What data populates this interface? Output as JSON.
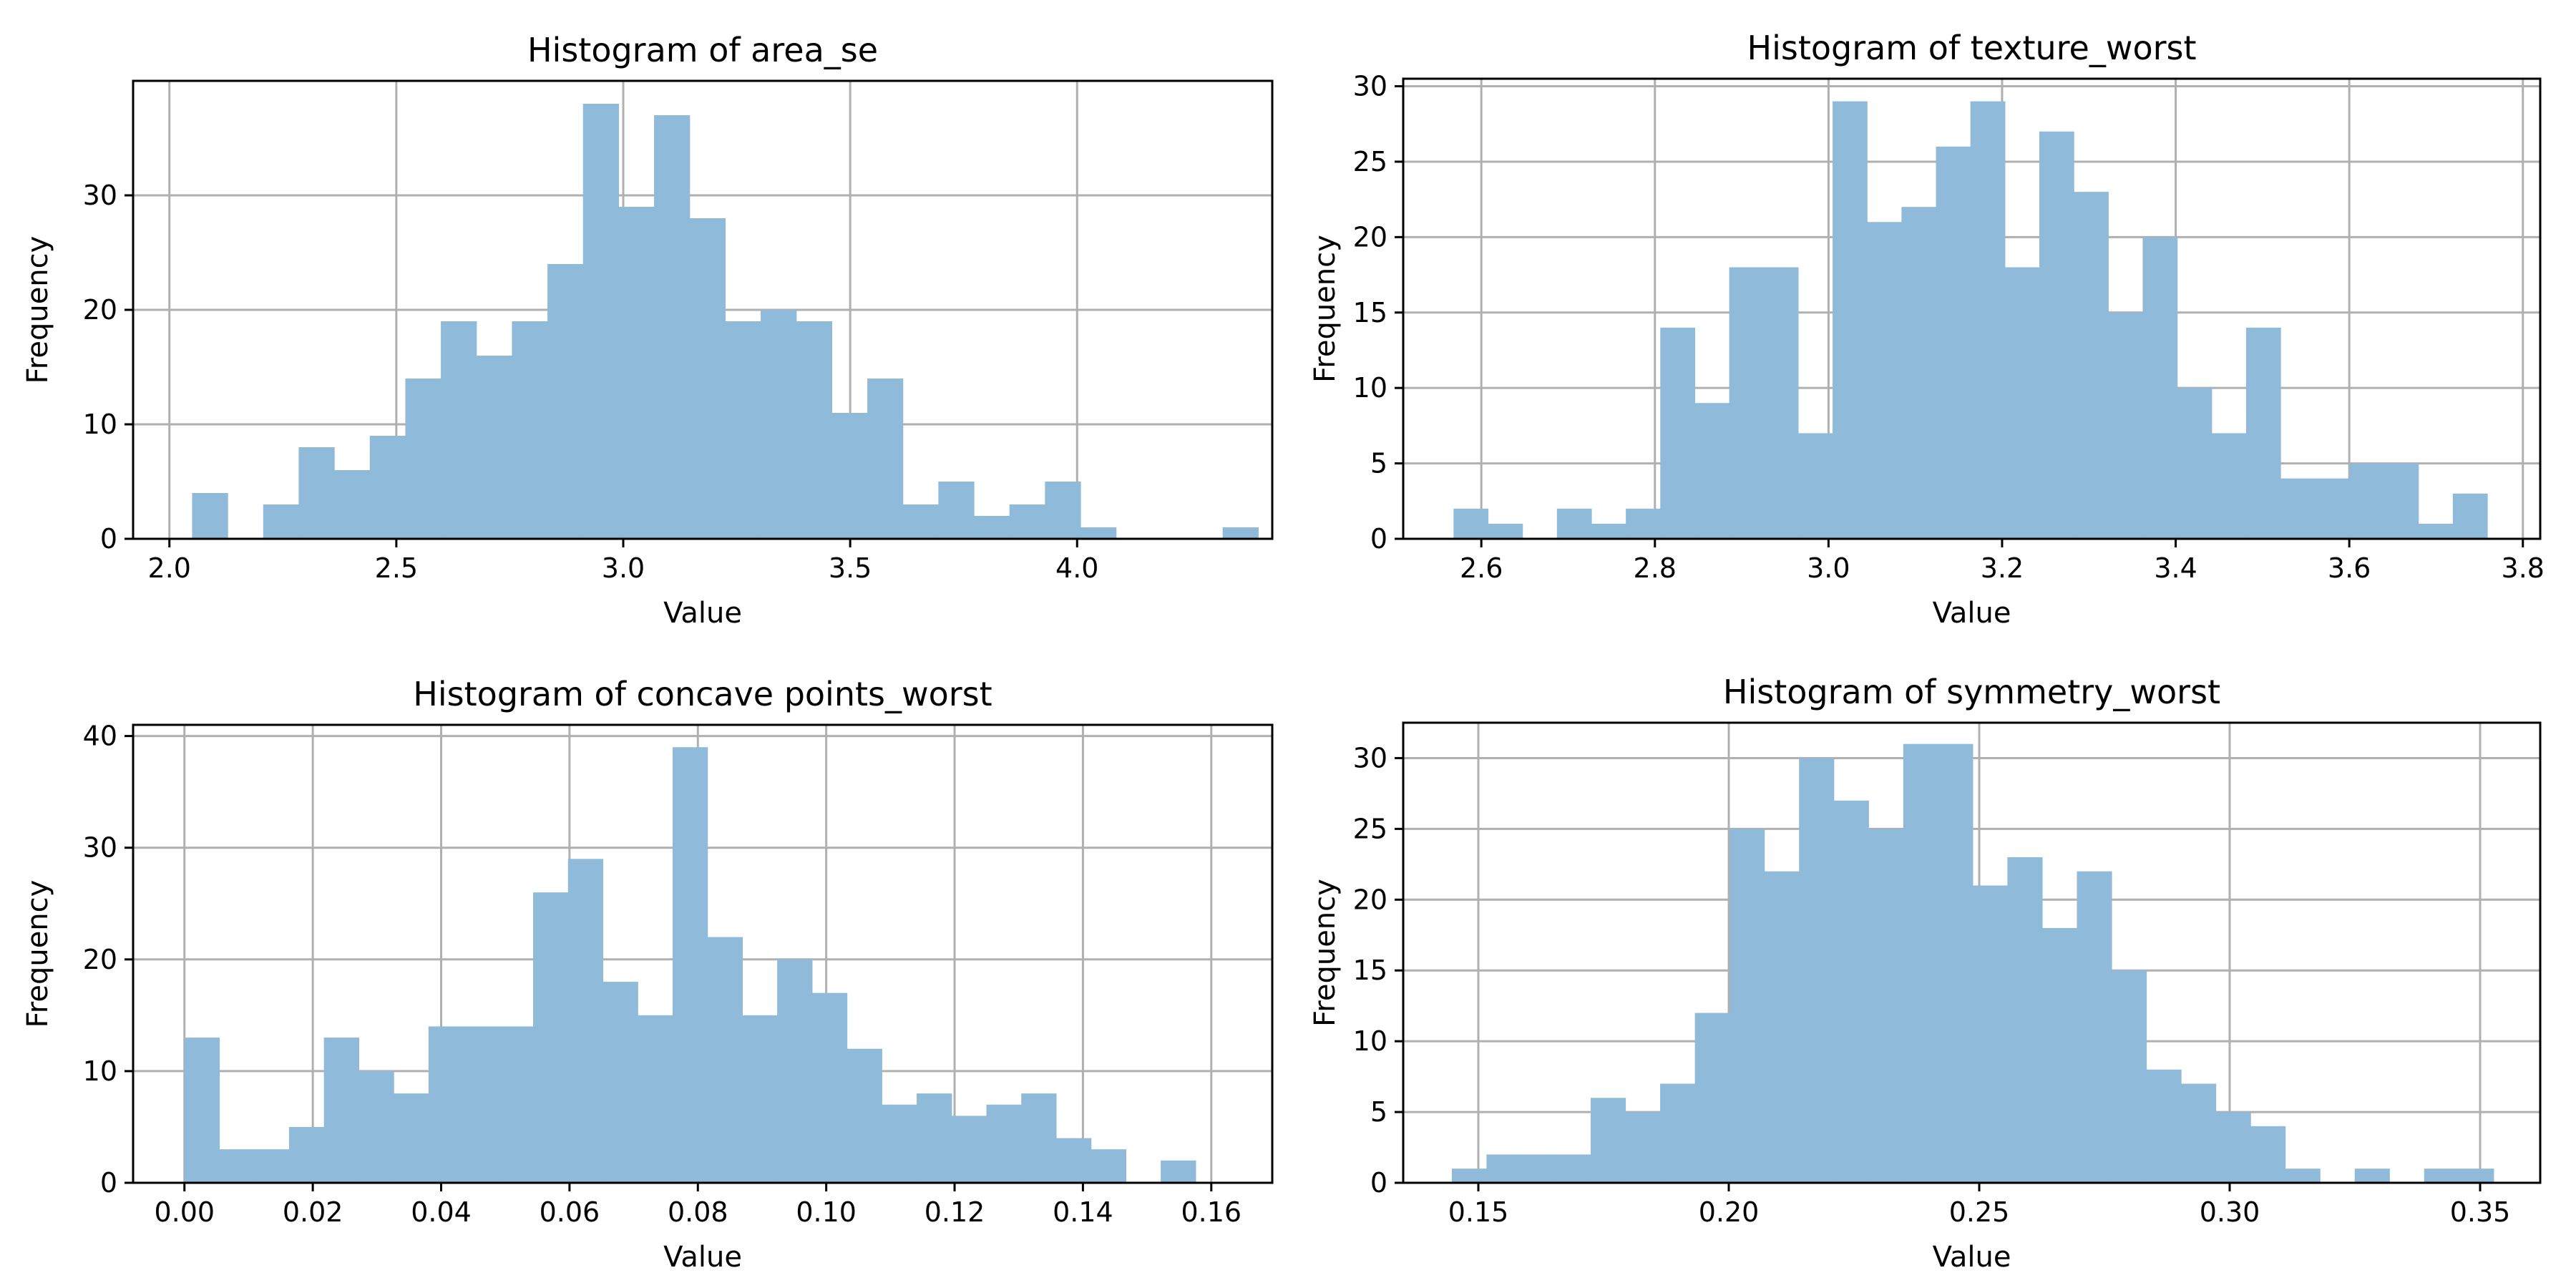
{
  "colors": {
    "bar": "#8fbad9",
    "grid": "#b0b0b0",
    "axis": "#000000"
  },
  "chart_data": [
    {
      "type": "bar",
      "title": "Histogram of area_se",
      "xlabel": "Value",
      "ylabel": "Frequency",
      "xlim": [
        1.92,
        4.43
      ],
      "ylim": [
        0,
        40
      ],
      "xticks": [
        2.0,
        2.5,
        3.0,
        3.5,
        4.0
      ],
      "xtick_labels": [
        "2.0",
        "2.5",
        "3.0",
        "3.5",
        "4.0"
      ],
      "yticks": [
        0,
        10,
        20,
        30
      ],
      "ytick_labels": [
        "0",
        "10",
        "20",
        "30"
      ],
      "grid": true,
      "bins_start": 2.05,
      "bin_width": 0.0783,
      "values": [
        4,
        0,
        3,
        8,
        6,
        9,
        14,
        19,
        16,
        19,
        24,
        38,
        29,
        37,
        28,
        19,
        20,
        19,
        11,
        14,
        3,
        5,
        2,
        3,
        5,
        1,
        0,
        0,
        0,
        1
      ]
    },
    {
      "type": "bar",
      "title": "Histogram of texture_worst",
      "xlabel": "Value",
      "ylabel": "Frequency",
      "xlim": [
        2.51,
        3.82
      ],
      "ylim": [
        0,
        30.5
      ],
      "xticks": [
        2.6,
        2.8,
        3.0,
        3.2,
        3.4,
        3.6,
        3.8
      ],
      "xtick_labels": [
        "2.6",
        "2.8",
        "3.0",
        "3.2",
        "3.4",
        "3.6",
        "3.8"
      ],
      "yticks": [
        0,
        5,
        10,
        15,
        20,
        25,
        30
      ],
      "ytick_labels": [
        "0",
        "5",
        "10",
        "15",
        "20",
        "25",
        "30"
      ],
      "grid": true,
      "bins_start": 2.568,
      "bin_width": 0.0397,
      "values": [
        2,
        1,
        0,
        2,
        1,
        2,
        14,
        9,
        18,
        18,
        7,
        29,
        21,
        22,
        26,
        29,
        18,
        27,
        23,
        15,
        20,
        10,
        7,
        14,
        4,
        4,
        5,
        5,
        1,
        3
      ]
    },
    {
      "type": "bar",
      "title": "Histogram of concave points_worst",
      "xlabel": "Value",
      "ylabel": "Frequency",
      "xlim": [
        -0.008,
        0.1695
      ],
      "ylim": [
        0,
        41
      ],
      "xticks": [
        0.0,
        0.02,
        0.04,
        0.06,
        0.08,
        0.1,
        0.12,
        0.14,
        0.16
      ],
      "xtick_labels": [
        "0.00",
        "0.02",
        "0.04",
        "0.06",
        "0.08",
        "0.10",
        "0.12",
        "0.14",
        "0.16"
      ],
      "yticks": [
        0,
        10,
        20,
        30,
        40
      ],
      "ytick_labels": [
        "0",
        "10",
        "20",
        "30",
        "40"
      ],
      "grid": true,
      "bins_start": 0.0,
      "bin_width": 0.005433,
      "values": [
        13,
        3,
        3,
        5,
        13,
        10,
        8,
        14,
        14,
        14,
        26,
        29,
        18,
        15,
        39,
        22,
        15,
        20,
        17,
        12,
        7,
        8,
        6,
        7,
        8,
        4,
        3,
        0,
        2,
        0
      ]
    },
    {
      "type": "bar",
      "title": "Histogram of symmetry_worst",
      "xlabel": "Value",
      "ylabel": "Frequency",
      "xlim": [
        0.135,
        0.362
      ],
      "ylim": [
        0,
        32.5
      ],
      "xticks": [
        0.15,
        0.2,
        0.25,
        0.3,
        0.35
      ],
      "xtick_labels": [
        "0.15",
        "0.20",
        "0.25",
        "0.30",
        "0.35"
      ],
      "yticks": [
        0,
        5,
        10,
        15,
        20,
        25,
        30
      ],
      "ytick_labels": [
        "0",
        "5",
        "10",
        "15",
        "20",
        "25",
        "30"
      ],
      "grid": true,
      "bins_start": 0.1447,
      "bin_width": 0.006933,
      "values": [
        1,
        2,
        2,
        2,
        6,
        5,
        7,
        12,
        25,
        22,
        30,
        27,
        25,
        31,
        31,
        21,
        23,
        18,
        22,
        15,
        8,
        7,
        5,
        4,
        1,
        0,
        1,
        0,
        1,
        1
      ]
    }
  ]
}
